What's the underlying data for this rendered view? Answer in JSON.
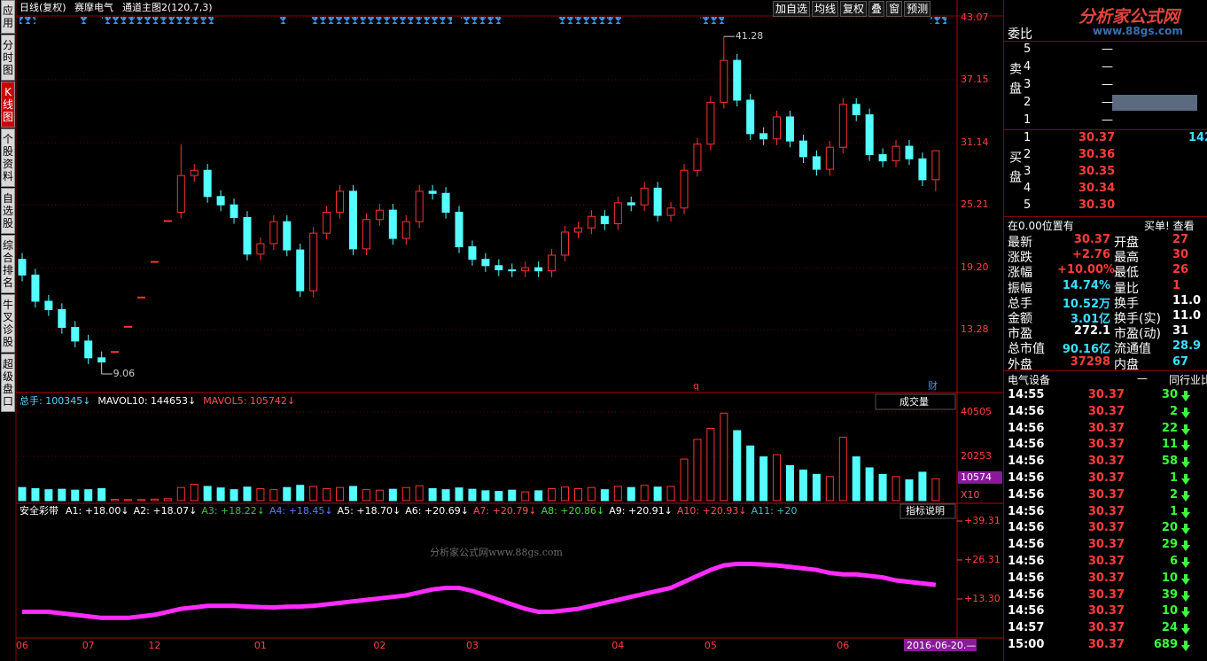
{
  "toolbar": {
    "period": "日线(复权)",
    "stock": "赛摩电气",
    "indicator": "通道主图2(120,7,3)",
    "buttons": [
      "加自选",
      "均线",
      "复权",
      "叠",
      "窗",
      "预测"
    ]
  },
  "sidebar": {
    "tabs": [
      "应用",
      "分时图",
      "K线图",
      "个股资料",
      "自选股",
      "综合排名",
      "牛叉诊股",
      "超级盘口"
    ],
    "active_tab": "K线图"
  },
  "price_chart": {
    "type": "candlestick",
    "up_color": "#ff3232",
    "down_color": "#54ffff",
    "open": [
      20.0,
      18.5,
      16.0,
      15.2,
      13.5,
      12.2,
      10.6,
      11.2,
      13.6,
      16.4,
      19.8,
      23.7,
      24.5,
      28.0,
      28.5,
      26.0,
      25.2,
      24.0,
      20.5,
      21.5,
      23.6,
      20.9,
      17.0,
      22.5,
      24.5,
      26.5,
      21.0,
      23.8,
      24.7,
      22.0,
      23.6,
      26.5,
      26.3,
      24.5,
      21.2,
      20.0,
      19.4,
      19.0,
      18.9,
      19.2,
      18.9,
      20.4,
      22.6,
      23.0,
      24.1,
      23.4,
      25.4,
      25.2,
      26.8,
      24.2,
      24.9,
      28.5,
      31.0,
      35.0,
      39.0,
      35.2,
      32.0,
      31.5,
      33.6,
      31.3,
      29.8,
      28.6,
      30.7,
      34.8,
      33.8,
      30.0,
      29.4,
      30.8,
      29.6,
      27.6
    ],
    "high": [
      20.6,
      19.1,
      16.6,
      15.8,
      14.1,
      12.8,
      11.2,
      11.2,
      13.6,
      16.4,
      19.8,
      23.7,
      31.0,
      29.1,
      29.1,
      26.6,
      25.8,
      24.6,
      22.1,
      24.2,
      24.2,
      21.5,
      23.1,
      25.1,
      27.1,
      27.1,
      24.4,
      25.3,
      25.3,
      24.2,
      27.1,
      27.1,
      26.9,
      25.1,
      21.8,
      20.6,
      20.0,
      19.6,
      19.8,
      19.8,
      21.0,
      23.2,
      23.6,
      24.7,
      24.7,
      26.0,
      26.0,
      27.4,
      27.4,
      25.5,
      29.1,
      31.6,
      35.6,
      41.28,
      39.6,
      35.8,
      32.6,
      34.2,
      34.2,
      31.9,
      30.4,
      31.3,
      35.4,
      35.4,
      34.4,
      30.6,
      31.4,
      31.4,
      30.2,
      30.37
    ],
    "low": [
      17.9,
      15.4,
      14.6,
      12.9,
      11.6,
      10.0,
      9.06,
      11.2,
      13.6,
      16.4,
      19.8,
      23.7,
      23.9,
      27.4,
      25.4,
      24.6,
      23.4,
      19.9,
      19.9,
      20.9,
      20.3,
      16.4,
      16.4,
      21.9,
      23.9,
      20.4,
      20.4,
      23.2,
      21.4,
      21.4,
      23.0,
      25.7,
      23.9,
      20.6,
      19.4,
      18.8,
      18.4,
      18.3,
      18.3,
      18.3,
      18.3,
      19.8,
      22.0,
      22.4,
      22.8,
      22.8,
      24.6,
      24.6,
      23.6,
      23.6,
      24.3,
      27.9,
      30.4,
      34.4,
      34.6,
      31.4,
      30.9,
      30.9,
      30.7,
      29.2,
      28.0,
      28.0,
      30.1,
      33.2,
      29.4,
      28.8,
      28.8,
      29.0,
      27.0,
      26.5
    ],
    "close": [
      18.5,
      16.0,
      15.2,
      13.5,
      12.2,
      10.6,
      10.2,
      11.2,
      13.6,
      16.4,
      19.8,
      23.7,
      28.0,
      28.5,
      26.0,
      25.2,
      24.0,
      20.5,
      21.5,
      23.6,
      20.9,
      17.0,
      22.5,
      24.5,
      26.5,
      21.0,
      23.8,
      24.7,
      22.0,
      23.6,
      26.5,
      26.3,
      24.5,
      21.2,
      20.0,
      19.4,
      19.0,
      18.9,
      19.2,
      18.9,
      20.4,
      22.6,
      23.0,
      24.1,
      23.4,
      25.4,
      25.2,
      26.8,
      24.2,
      24.9,
      28.5,
      31.0,
      35.0,
      39.0,
      35.2,
      32.0,
      31.5,
      33.6,
      31.3,
      29.8,
      28.6,
      30.7,
      34.8,
      33.8,
      30.0,
      29.4,
      30.8,
      29.6,
      27.6,
      30.37
    ],
    "dates": [
      "06",
      null,
      null,
      null,
      null,
      "07",
      null,
      null,
      null,
      null,
      "12",
      null,
      null,
      null,
      null,
      null,
      null,
      null,
      "01",
      null,
      null,
      null,
      null,
      null,
      null,
      null,
      null,
      "02",
      null,
      null,
      null,
      null,
      null,
      null,
      "03",
      null,
      null,
      null,
      null,
      null,
      null,
      null,
      null,
      null,
      null,
      "04",
      null,
      null,
      null,
      null,
      null,
      null,
      "05",
      null,
      null,
      null,
      null,
      null,
      null,
      null,
      null,
      null,
      "06",
      null,
      null,
      null,
      null,
      null,
      null,
      null
    ],
    "ylim": [
      7.37,
      43.07
    ],
    "yticks": [
      43.07,
      37.15,
      31.14,
      25.21,
      {
        "value": 19.2,
        "label": "19.20"
      },
      13.28
    ],
    "grid": true,
    "markers": [
      "q",
      "财"
    ],
    "cursor_date": "2016-06-20.—"
  },
  "volume_chart": {
    "type": "bar",
    "header": [
      {
        "text": "总手: 100345↓",
        "color": "#57d9ff"
      },
      {
        "text": "MAVOL10: 144653↓",
        "color": "#ffffff"
      },
      {
        "text": "MAVOL5: 105742↓",
        "color": "#ff5050"
      }
    ],
    "selector": "成交量",
    "values": [
      6000,
      5500,
      5000,
      5200,
      4800,
      5000,
      5500,
      600,
      500,
      500,
      700,
      900,
      6000,
      7500,
      6500,
      5800,
      5000,
      6200,
      5500,
      5000,
      6000,
      7000,
      6500,
      5500,
      6000,
      6500,
      5000,
      4800,
      5200,
      6000,
      6800,
      5500,
      5000,
      5800,
      5200,
      4500,
      4200,
      4800,
      4000,
      4500,
      5500,
      6200,
      5500,
      6000,
      5000,
      6500,
      6000,
      7000,
      6200,
      6500,
      19000,
      28000,
      33000,
      40000,
      32000,
      25000,
      20000,
      21000,
      16000,
      14000,
      12000,
      11000,
      29000,
      20000,
      15000,
      12000,
      11000,
      9500,
      13000,
      10034
    ],
    "ylim": [
      0,
      40505
    ],
    "yticks": [
      40505,
      20253
    ],
    "latest_marker": 10574,
    "unit_note": "X10"
  },
  "indicator_chart": {
    "type": "line",
    "name": "安全彩带",
    "header": [
      {
        "text": "A1: +18.00↓",
        "color": "#ffffff"
      },
      {
        "text": "A2: +18.07↓",
        "color": "#ffffff"
      },
      {
        "text": "A3: +18.22↓",
        "color": "#40c040"
      },
      {
        "text": "A4: +18.45↓",
        "color": "#5a7bff"
      },
      {
        "text": "A5: +18.70↓",
        "color": "#ffffff"
      },
      {
        "text": "A6: +20.69↓",
        "color": "#ffffff"
      },
      {
        "text": "A7: +20.79↓",
        "color": "#ff5050"
      },
      {
        "text": "A8: +20.86↓",
        "color": "#40e040"
      },
      {
        "text": "A9: +20.91↓",
        "color": "#ffffff"
      },
      {
        "text": "A10: +20.93↓",
        "color": "#ff5050"
      },
      {
        "text": "A11: +20",
        "color": "#40c0c0"
      }
    ],
    "button": "指标说明",
    "color": "#ff2cff",
    "values": [
      9,
      9,
      9,
      8.5,
      8,
      7.5,
      7,
      7,
      7,
      7.5,
      8,
      9,
      10,
      10.5,
      11,
      11,
      11,
      10.8,
      10.6,
      10.5,
      10.7,
      10.8,
      11,
      11.5,
      12,
      12.5,
      13,
      13.5,
      14,
      14.5,
      15.5,
      16.5,
      17,
      17,
      16,
      14.5,
      13,
      11.5,
      10,
      9,
      9,
      9.5,
      10,
      11,
      12,
      13,
      14,
      15,
      16,
      17,
      19,
      21,
      23,
      24.5,
      25,
      25,
      24.8,
      24.5,
      24,
      23.5,
      23,
      22,
      21.5,
      21.5,
      21,
      20.5,
      19.5,
      19,
      18.5,
      18
    ],
    "ylim": [
      0.88,
      39.31
    ],
    "yticks": [
      {
        "value": 39.31,
        "label": "+39.31"
      },
      {
        "value": 26.31,
        "label": "+26.31"
      },
      {
        "value": 13.3,
        "label": "+13.30"
      }
    ]
  },
  "watermark": "分析家公式网www.88gs.com",
  "logo": {
    "name": "分析家公式网",
    "url": "www.88gs.com"
  },
  "order_book": {
    "title": "委比",
    "sell_side": "卖盘",
    "buy_side": "买盘",
    "sell": [
      {
        "level": "5",
        "price": "—"
      },
      {
        "level": "4",
        "price": "—"
      },
      {
        "level": "3",
        "price": "—"
      },
      {
        "level": "2",
        "price": "—"
      },
      {
        "level": "1",
        "price": "—"
      }
    ],
    "buy": [
      {
        "level": "1",
        "price": "30.37",
        "volume": "142"
      },
      {
        "level": "2",
        "price": "30.36"
      },
      {
        "level": "3",
        "price": "30.35"
      },
      {
        "level": "4",
        "price": "30.34"
      },
      {
        "level": "5",
        "price": "30.30"
      }
    ],
    "notice": "在0.00位置有",
    "notice_link": "买单! 查看"
  },
  "quote": [
    {
      "label": "最新",
      "value": "30.37",
      "color": "#ff3c3c",
      "label2": "开盘",
      "value2": "27",
      "color2": "#ff3c3c"
    },
    {
      "label": "涨跌",
      "value": "+2.76",
      "color": "#ff3c3c",
      "label2": "最高",
      "value2": "30",
      "color2": "#ff3c3c"
    },
    {
      "label": "涨幅",
      "value": "+10.00%",
      "color": "#ff3c3c",
      "label2": "最低",
      "value2": "26",
      "color2": "#ff3c3c"
    },
    {
      "label": "振幅",
      "value": "14.74%",
      "color": "#3ce0ff",
      "label2": "量比",
      "value2": "1",
      "color2": "#ff3c3c"
    },
    {
      "label": "总手",
      "value": "10.52万",
      "color": "#3ce0ff",
      "label2": "换手",
      "value2": "11.0",
      "color2": "#ffffff"
    },
    {
      "label": "金额",
      "value": "3.01亿",
      "color": "#3ce0ff",
      "label2": "换手(实)",
      "value2": "11.0",
      "color2": "#ffffff"
    },
    {
      "label": "市盈",
      "value": "272.1",
      "color": "#ffffff",
      "label2": "市盈(动)",
      "value2": "31",
      "color2": "#ffffff"
    },
    {
      "label": "总市值",
      "value": "90.16亿",
      "color": "#3ce0ff",
      "label2": "流通值",
      "value2": "28.9",
      "color2": "#3ce0ff"
    },
    {
      "label": "外盘",
      "value": "37298",
      "color": "#ff3c3c",
      "label2": "内盘",
      "value2": "67",
      "color2": "#3ce0ff"
    }
  ],
  "industry": {
    "name": "电气设备",
    "dash": "—",
    "compare": "同行业比"
  },
  "ticks": [
    {
      "time": "14:55",
      "price": 30.37,
      "volume": 30
    },
    {
      "time": "14:56",
      "price": 30.37,
      "volume": 2
    },
    {
      "time": "14:56",
      "price": 30.37,
      "volume": 22
    },
    {
      "time": "14:56",
      "price": 30.37,
      "volume": 11
    },
    {
      "time": "14:56",
      "price": 30.37,
      "volume": 58
    },
    {
      "time": "14:56",
      "price": 30.37,
      "volume": 1
    },
    {
      "time": "14:56",
      "price": 30.37,
      "volume": 2
    },
    {
      "time": "14:56",
      "price": 30.37,
      "volume": 1
    },
    {
      "time": "14:56",
      "price": 30.37,
      "volume": 20
    },
    {
      "time": "14:56",
      "price": 30.37,
      "volume": 29
    },
    {
      "time": "14:56",
      "price": 30.37,
      "volume": 6
    },
    {
      "time": "14:56",
      "price": 30.37,
      "volume": 10
    },
    {
      "time": "14:56",
      "price": 30.37,
      "volume": 39
    },
    {
      "time": "14:56",
      "price": 30.37,
      "volume": 10
    },
    {
      "time": "14:57",
      "price": 30.37,
      "volume": 24
    },
    {
      "time": "15:00",
      "price": 30.37,
      "volume": 689
    }
  ]
}
